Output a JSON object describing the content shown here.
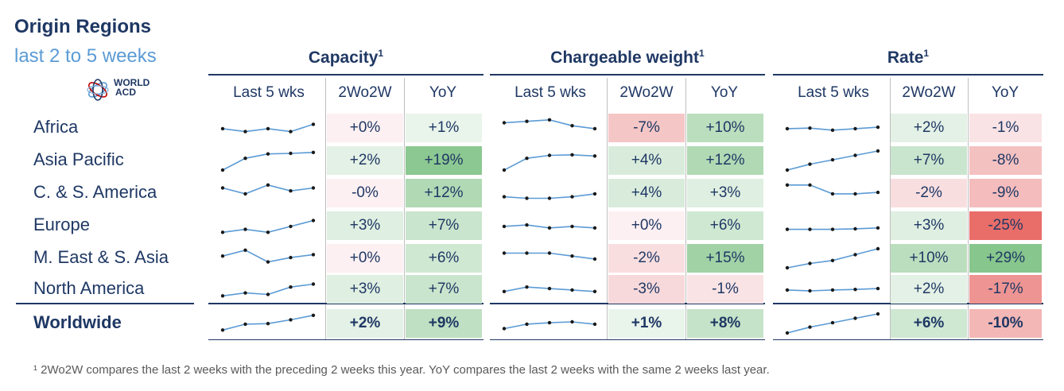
{
  "title": "Origin Regions",
  "subtitle": "last 2 to 5 weeks",
  "logo": {
    "line1": "WORLD",
    "line2": "ACD",
    "icon": "globe-rings-icon"
  },
  "groups": [
    {
      "name": "Capacity",
      "sup": "1"
    },
    {
      "name": "Chargeable weight",
      "sup": "1"
    },
    {
      "name": "Rate",
      "sup": "1"
    }
  ],
  "subheaders": [
    "Last 5 wks",
    "2Wo2W",
    "YoY"
  ],
  "regions": [
    "Africa",
    "Asia Pacific",
    "C. & S. America",
    "Europe",
    "M. East & S. Asia",
    "North America",
    "Worldwide"
  ],
  "footnote": "¹ 2Wo2W compares the last 2 weeks with the preceding 2 weeks this year. YoY compares the last 2 weeks with the same 2 weeks last year.",
  "colors": {
    "navy": "#1f3864",
    "sparkline": "#5b9bd5",
    "positive_strong": "#8fca92",
    "negative_strong": "#ea6b66"
  },
  "chart_data": {
    "type": "table",
    "title": "Origin Regions last 2 to 5 weeks",
    "columns": [
      "Capacity 2Wo2W",
      "Capacity YoY",
      "Chargeable weight 2Wo2W",
      "Chargeable weight YoY",
      "Rate 2Wo2W",
      "Rate YoY"
    ],
    "rows": [
      {
        "region": "Africa",
        "capacity": {
          "wow": "+0%",
          "yoy": "+1%",
          "wow_v": 0,
          "yoy_v": 1,
          "spark": [
            3,
            2,
            3,
            2,
            4.5
          ]
        },
        "weight": {
          "wow": "-7%",
          "yoy": "+10%",
          "wow_v": -7,
          "yoy_v": 10,
          "spark": [
            5,
            5.5,
            6,
            4,
            3
          ]
        },
        "rate": {
          "wow": "+2%",
          "yoy": "-1%",
          "wow_v": 2,
          "yoy_v": -1,
          "spark": [
            3,
            3.2,
            2.5,
            3,
            3.5
          ]
        }
      },
      {
        "region": "Asia Pacific",
        "capacity": {
          "wow": "+2%",
          "yoy": "+19%",
          "wow_v": 2,
          "yoy_v": 19,
          "spark": [
            0,
            4,
            5.5,
            5.7,
            6
          ]
        },
        "weight": {
          "wow": "+4%",
          "yoy": "+12%",
          "wow_v": 4,
          "yoy_v": 12,
          "spark": [
            0,
            4,
            5,
            5.2,
            4.8
          ]
        },
        "rate": {
          "wow": "+7%",
          "yoy": "-8%",
          "wow_v": 7,
          "yoy_v": -8,
          "spark": [
            0,
            2,
            3.5,
            5,
            6.5
          ]
        }
      },
      {
        "region": "C. & S. America",
        "capacity": {
          "wow": "-0%",
          "yoy": "+12%",
          "wow_v": 0,
          "yoy_v": 12,
          "spark": [
            5,
            3,
            6,
            4,
            5
          ]
        },
        "weight": {
          "wow": "+4%",
          "yoy": "+3%",
          "wow_v": 4,
          "yoy_v": 3,
          "spark": [
            2,
            1.5,
            1.5,
            2,
            3
          ]
        },
        "rate": {
          "wow": "-2%",
          "yoy": "-9%",
          "wow_v": -2,
          "yoy_v": -9,
          "spark": [
            6,
            6,
            3,
            3,
            3.5
          ]
        }
      },
      {
        "region": "Europe",
        "capacity": {
          "wow": "+3%",
          "yoy": "+7%",
          "wow_v": 3,
          "yoy_v": 7,
          "spark": [
            1,
            2,
            1,
            3,
            5
          ]
        },
        "weight": {
          "wow": "+0%",
          "yoy": "+6%",
          "wow_v": 0,
          "yoy_v": 6,
          "spark": [
            3,
            3.5,
            2.5,
            3,
            2.5
          ]
        },
        "rate": {
          "wow": "+3%",
          "yoy": "-25%",
          "wow_v": 3,
          "yoy_v": -25,
          "spark": [
            2,
            2,
            2,
            2.2,
            2.5
          ]
        }
      },
      {
        "region": "M. East & S. Asia",
        "capacity": {
          "wow": "+0%",
          "yoy": "+6%",
          "wow_v": 0,
          "yoy_v": 6,
          "spark": [
            4,
            6,
            2,
            3.5,
            4.5
          ]
        },
        "weight": {
          "wow": "-2%",
          "yoy": "+15%",
          "wow_v": -2,
          "yoy_v": 15,
          "spark": [
            5,
            5,
            5,
            4,
            3
          ]
        },
        "rate": {
          "wow": "+10%",
          "yoy": "+29%",
          "wow_v": 10,
          "yoy_v": 29,
          "spark": [
            0,
            1.5,
            2.5,
            4.5,
            6.5
          ]
        }
      },
      {
        "region": "North America",
        "capacity": {
          "wow": "+3%",
          "yoy": "+7%",
          "wow_v": 3,
          "yoy_v": 7,
          "spark": [
            1,
            2,
            1.5,
            4,
            5
          ]
        },
        "weight": {
          "wow": "-3%",
          "yoy": "-1%",
          "wow_v": -3,
          "yoy_v": -1,
          "spark": [
            2.5,
            4,
            3.5,
            3,
            2.5
          ]
        },
        "rate": {
          "wow": "+2%",
          "yoy": "-17%",
          "wow_v": 2,
          "yoy_v": -17,
          "spark": [
            3,
            2.7,
            3,
            3.2,
            3.5
          ]
        }
      },
      {
        "region": "Worldwide",
        "bold": true,
        "capacity": {
          "wow": "+2%",
          "yoy": "+9%",
          "wow_v": 2,
          "yoy_v": 9,
          "spark": [
            1,
            3,
            3.2,
            4.5,
            6
          ]
        },
        "weight": {
          "wow": "+1%",
          "yoy": "+8%",
          "wow_v": 1,
          "yoy_v": 8,
          "spark": [
            1.5,
            3,
            3.5,
            3.8,
            3
          ]
        },
        "rate": {
          "wow": "+6%",
          "yoy": "-10%",
          "wow_v": 6,
          "yoy_v": -10,
          "spark": [
            0,
            2,
            3.5,
            5,
            6.5
          ]
        }
      }
    ]
  }
}
